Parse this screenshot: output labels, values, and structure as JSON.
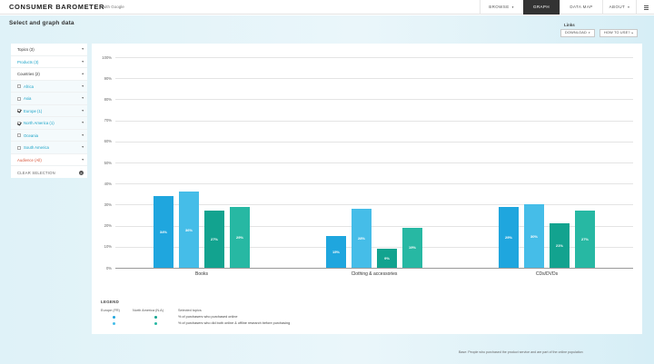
{
  "header": {
    "brand": "CONSUMER BAROMETER",
    "brand_sub": "with Google",
    "nav": [
      {
        "label": "BROWSE",
        "caret": "▾"
      },
      {
        "label": "GRAPH",
        "caret": ""
      },
      {
        "label": "DATA MAP",
        "caret": ""
      },
      {
        "label": "ABOUT",
        "caret": "▾"
      }
    ]
  },
  "page": {
    "title": "Select and graph data",
    "links_label": "Links",
    "download_label": "DOWNLOAD",
    "howto_label": "HOW TO USE?"
  },
  "sidebar": {
    "rows": [
      {
        "label": "Topics (3)",
        "color": "#333333"
      },
      {
        "label": "Products (3)",
        "color": "#1aa3c7"
      },
      {
        "label": "Countries (2)",
        "color": "#333333"
      },
      {
        "label": "Africa",
        "color": "#1aa3c7",
        "checkbox": true,
        "checked": false
      },
      {
        "label": "Asia",
        "color": "#1aa3c7",
        "checkbox": true,
        "checked": false
      },
      {
        "label": "Europe (1)",
        "color": "#1aa3c7",
        "checkbox": true,
        "checked": true
      },
      {
        "label": "North America (1)",
        "color": "#1aa3c7",
        "checkbox": true,
        "checked": true
      },
      {
        "label": "Oceania",
        "color": "#1aa3c7",
        "checkbox": true,
        "checked": false
      },
      {
        "label": "South America",
        "color": "#1aa3c7",
        "checkbox": true,
        "checked": false
      },
      {
        "label": "Audience (All)",
        "color": "#d8553a"
      }
    ],
    "clear_label": "CLEAR SELECTION",
    "chevron": "▾"
  },
  "chart_data": {
    "type": "bar",
    "categories": [
      "Books",
      "Clothing & accessories",
      "CDs/DVDs"
    ],
    "series": [
      {
        "name": "Europe (FR) – % of purchasers who purchased online",
        "color": "#1fa6de",
        "values": [
          34,
          15,
          29
        ]
      },
      {
        "name": "North America (N.A) – % of purchasers who purchased online",
        "color": "#45bde8",
        "values": [
          36,
          28,
          30
        ]
      },
      {
        "name": "Europe (FR) – % of purchasers who did both online & offline research before purchasing",
        "color": "#12a38f",
        "values": [
          27,
          9,
          21
        ]
      },
      {
        "name": "North America (N.A) – % of purchasers who did both online & offline research before purchasing",
        "color": "#27b8a3",
        "values": [
          29,
          19,
          27
        ]
      }
    ],
    "bar_labels": [
      [
        "34%",
        "15%",
        "29%"
      ],
      [
        "36%",
        "28%",
        "30%"
      ],
      [
        "27%",
        "9%",
        "21%"
      ],
      [
        "29%",
        "19%",
        "27%"
      ]
    ],
    "y_ticks": [
      "100%",
      "90%",
      "80%",
      "70%",
      "60%",
      "50%",
      "40%",
      "30%",
      "20%",
      "10%",
      "0%"
    ],
    "ylim": [
      0,
      100
    ],
    "grid": true
  },
  "legend": {
    "title": "LEGEND",
    "col_europe": "Europe (FR)",
    "col_na": "North America (N.A)",
    "col_topics": "Selected topics",
    "items": [
      {
        "text": "% of purchasers who purchased online",
        "color_a": "#1fa6de",
        "color_b": "#12a38f"
      },
      {
        "text": "% of purchasers who did both online & offline research before purchasing",
        "color_a": "#45bde8",
        "color_b": "#27b8a3"
      }
    ]
  },
  "footnote": "Base: People who purchased the product service and are part of the online population"
}
